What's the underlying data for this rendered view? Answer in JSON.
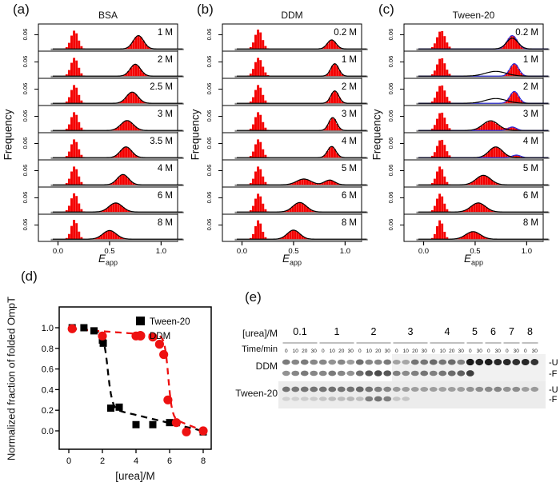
{
  "figure": {
    "background": "#ffffff",
    "panel_labels": {
      "a": "(a)",
      "b": "(b)",
      "c": "(c)",
      "d": "(d)",
      "e": "(e)"
    }
  },
  "hist_common": {
    "ylabel": "Frequency",
    "ytick_label": "0.06",
    "xtick_labels": [
      "0.0",
      "0.5",
      "1.0"
    ],
    "xtick_values": [
      0.0,
      0.5,
      1.0
    ],
    "xlabel_e": "E",
    "xlabel_sub": "app",
    "xlim": [
      -0.19,
      1.16
    ],
    "bar_color": "#f40000",
    "fit_black": "#000000",
    "fit_blue": "#2b2bd8",
    "baseline_color": "#8a8a8a"
  },
  "chart_data": [
    {
      "id": "a",
      "type": "histogram-stack",
      "title": "BSA",
      "xlabel": "E_app",
      "ylabel": "Frequency",
      "rows": [
        {
          "label": "1 M",
          "bars": [
            [
              0.16,
              0.035,
              0.85
            ],
            [
              0.78,
              0.05,
              0.62
            ]
          ],
          "black": [
            [
              0.78,
              0.05,
              0.62
            ]
          ],
          "blue": []
        },
        {
          "label": "2 M",
          "bars": [
            [
              0.16,
              0.035,
              0.85
            ],
            [
              0.75,
              0.05,
              0.55
            ]
          ],
          "black": [
            [
              0.75,
              0.05,
              0.55
            ]
          ],
          "blue": []
        },
        {
          "label": "2.5 M",
          "bars": [
            [
              0.16,
              0.035,
              0.85
            ],
            [
              0.72,
              0.055,
              0.52
            ]
          ],
          "black": [
            [
              0.72,
              0.055,
              0.52
            ]
          ],
          "blue": []
        },
        {
          "label": "3 M",
          "bars": [
            [
              0.16,
              0.035,
              0.85
            ],
            [
              0.67,
              0.06,
              0.46
            ]
          ],
          "black": [
            [
              0.67,
              0.06,
              0.46
            ]
          ],
          "blue": []
        },
        {
          "label": "3.5 M",
          "bars": [
            [
              0.16,
              0.035,
              0.85
            ],
            [
              0.66,
              0.055,
              0.5
            ]
          ],
          "black": [
            [
              0.66,
              0.055,
              0.5
            ]
          ],
          "blue": []
        },
        {
          "label": "4 M",
          "bars": [
            [
              0.16,
              0.035,
              0.85
            ],
            [
              0.63,
              0.055,
              0.48
            ]
          ],
          "black": [
            [
              0.63,
              0.055,
              0.48
            ]
          ],
          "blue": []
        },
        {
          "label": "6 M",
          "bars": [
            [
              0.16,
              0.035,
              0.87
            ],
            [
              0.56,
              0.065,
              0.42
            ]
          ],
          "black": [
            [
              0.56,
              0.065,
              0.42
            ]
          ],
          "blue": []
        },
        {
          "label": "8 M",
          "bars": [
            [
              0.16,
              0.032,
              0.9
            ],
            [
              0.5,
              0.065,
              0.4
            ]
          ],
          "black": [
            [
              0.5,
              0.065,
              0.4
            ]
          ],
          "blue": []
        }
      ]
    },
    {
      "id": "b",
      "type": "histogram-stack",
      "title": "DDM",
      "xlabel": "E_app",
      "ylabel": "Frequency",
      "rows": [
        {
          "label": "0.2 M",
          "bars": [
            [
              0.16,
              0.035,
              0.9
            ],
            [
              0.87,
              0.042,
              0.42
            ]
          ],
          "black": [
            [
              0.87,
              0.042,
              0.42
            ]
          ],
          "blue": []
        },
        {
          "label": "1 M",
          "bars": [
            [
              0.16,
              0.038,
              0.85
            ],
            [
              0.9,
              0.038,
              0.58
            ]
          ],
          "black": [
            [
              0.9,
              0.038,
              0.58
            ]
          ],
          "blue": []
        },
        {
          "label": "2 M",
          "bars": [
            [
              0.16,
              0.035,
              0.85
            ],
            [
              0.9,
              0.038,
              0.58
            ]
          ],
          "black": [
            [
              0.9,
              0.038,
              0.58
            ]
          ],
          "blue": []
        },
        {
          "label": "3 M",
          "bars": [
            [
              0.16,
              0.035,
              0.85
            ],
            [
              0.88,
              0.038,
              0.6
            ]
          ],
          "black": [
            [
              0.88,
              0.038,
              0.6
            ]
          ],
          "blue": []
        },
        {
          "label": "4 M",
          "bars": [
            [
              0.16,
              0.035,
              0.85
            ],
            [
              0.87,
              0.04,
              0.52
            ]
          ],
          "black": [
            [
              0.87,
              0.04,
              0.52
            ]
          ],
          "blue": []
        },
        {
          "label": "5 M",
          "bars": [
            [
              0.16,
              0.035,
              0.85
            ],
            [
              0.6,
              0.07,
              0.27
            ],
            [
              0.85,
              0.05,
              0.22
            ]
          ],
          "black": [
            [
              0.6,
              0.07,
              0.27
            ],
            [
              0.85,
              0.05,
              0.22
            ]
          ],
          "blue": []
        },
        {
          "label": "6 M",
          "bars": [
            [
              0.16,
              0.035,
              0.85
            ],
            [
              0.56,
              0.065,
              0.44
            ]
          ],
          "black": [
            [
              0.56,
              0.065,
              0.44
            ]
          ],
          "blue": []
        },
        {
          "label": "8 M",
          "bars": [
            [
              0.16,
              0.032,
              0.88
            ],
            [
              0.5,
              0.06,
              0.42
            ]
          ],
          "black": [
            [
              0.5,
              0.06,
              0.42
            ]
          ],
          "blue": []
        }
      ]
    },
    {
      "id": "c",
      "type": "histogram-stack",
      "title": "Tween-20",
      "xlabel": "E_app",
      "ylabel": "Frequency",
      "rows": [
        {
          "label": "0.2 M",
          "bars": [
            [
              0.17,
              0.04,
              0.85
            ],
            [
              0.86,
              0.048,
              0.62
            ]
          ],
          "black": [
            [
              0.86,
              0.055,
              0.5
            ]
          ],
          "blue": [
            [
              0.86,
              0.048,
              0.62
            ]
          ]
        },
        {
          "label": "1 M",
          "bars": [
            [
              0.17,
              0.04,
              0.85
            ],
            [
              0.88,
              0.042,
              0.58
            ]
          ],
          "black": [
            [
              0.7,
              0.1,
              0.22
            ]
          ],
          "blue": [
            [
              0.88,
              0.042,
              0.58
            ]
          ]
        },
        {
          "label": "2 M",
          "bars": [
            [
              0.17,
              0.04,
              0.85
            ],
            [
              0.88,
              0.042,
              0.55
            ]
          ],
          "black": [
            [
              0.7,
              0.1,
              0.22
            ]
          ],
          "blue": [
            [
              0.88,
              0.042,
              0.55
            ]
          ]
        },
        {
          "label": "3 M",
          "bars": [
            [
              0.17,
              0.04,
              0.85
            ],
            [
              0.65,
              0.075,
              0.42
            ],
            [
              0.86,
              0.04,
              0.15
            ]
          ],
          "black": [
            [
              0.65,
              0.075,
              0.45
            ]
          ],
          "blue": [
            [
              0.86,
              0.04,
              0.16
            ]
          ]
        },
        {
          "label": "4 M",
          "bars": [
            [
              0.17,
              0.04,
              0.85
            ],
            [
              0.7,
              0.065,
              0.5
            ],
            [
              0.9,
              0.04,
              0.1
            ]
          ],
          "black": [
            [
              0.7,
              0.065,
              0.5
            ]
          ],
          "blue": [
            [
              0.9,
              0.04,
              0.12
            ]
          ]
        },
        {
          "label": "5 M",
          "bars": [
            [
              0.16,
              0.035,
              0.85
            ],
            [
              0.58,
              0.07,
              0.44
            ]
          ],
          "black": [
            [
              0.58,
              0.07,
              0.44
            ]
          ],
          "blue": []
        },
        {
          "label": "6 M",
          "bars": [
            [
              0.16,
              0.035,
              0.85
            ],
            [
              0.53,
              0.07,
              0.42
            ]
          ],
          "black": [
            [
              0.53,
              0.07,
              0.42
            ]
          ],
          "blue": []
        },
        {
          "label": "8 M",
          "bars": [
            [
              0.16,
              0.032,
              0.88
            ],
            [
              0.48,
              0.07,
              0.35
            ]
          ],
          "black": [
            [
              0.48,
              0.07,
              0.35
            ]
          ],
          "blue": []
        }
      ]
    },
    {
      "id": "d",
      "type": "scatter",
      "xlabel": "[urea]/M",
      "ylabel": "Normalized fraction of folded OmpT",
      "xticks": [
        "0",
        "2",
        "4",
        "6",
        "8"
      ],
      "xtick_values": [
        0,
        2,
        4,
        6,
        8
      ],
      "yticks": [
        "1.0",
        "0.8",
        "0.6",
        "0.4",
        "0.2",
        "0.0"
      ],
      "ytick_values": [
        1.0,
        0.8,
        0.6,
        0.4,
        0.2,
        0.0
      ],
      "xlim": [
        -0.6,
        8.6
      ],
      "ylim": [
        -0.18,
        1.2
      ],
      "legend_position": "top-right",
      "series": [
        {
          "name": "Tween-20",
          "marker": "square",
          "color": "#000000",
          "line": "dashed",
          "points": [
            [
              0.2,
              1.0
            ],
            [
              0.9,
              1.0
            ],
            [
              1.5,
              0.97
            ],
            [
              2.0,
              0.88
            ],
            [
              2.05,
              0.85
            ],
            [
              2.5,
              0.22
            ],
            [
              3.0,
              0.23
            ],
            [
              4.0,
              0.06
            ],
            [
              5.0,
              0.06
            ],
            [
              6.0,
              0.08
            ],
            [
              8.0,
              -0.01
            ]
          ],
          "fit": {
            "pre_a": 0.995,
            "pre_b": 0.015,
            "post_a": 0.31,
            "post_b": 0.039,
            "x0": 2.32,
            "k": 0.13
          }
        },
        {
          "name": "DDM",
          "marker": "circle",
          "color": "#ee1111",
          "line": "dashed",
          "points": [
            [
              0.2,
              0.99
            ],
            [
              2.0,
              0.92
            ],
            [
              4.0,
              0.92
            ],
            [
              5.0,
              0.91
            ],
            [
              5.4,
              0.84
            ],
            [
              5.65,
              0.74
            ],
            [
              5.9,
              0.3
            ],
            [
              6.4,
              0.08
            ],
            [
              7.0,
              -0.01
            ],
            [
              8.0,
              0.0
            ]
          ],
          "fit": {
            "pre_a": 0.99,
            "pre_b": 0.012,
            "post_a": 0.52,
            "post_b": 0.065,
            "x0": 5.92,
            "k": 0.11
          }
        }
      ]
    },
    {
      "id": "e",
      "type": "gel",
      "conc_header": "[urea]/M",
      "time_header": "Time/min",
      "groups": [
        {
          "label": "0.1",
          "times": [
            "0",
            "10",
            "20",
            "30"
          ]
        },
        {
          "label": "1",
          "times": [
            "0",
            "10",
            "20",
            "30"
          ]
        },
        {
          "label": "2",
          "times": [
            "0",
            "10",
            "20",
            "30"
          ]
        },
        {
          "label": "3",
          "times": [
            "0",
            "10",
            "20",
            "30"
          ]
        },
        {
          "label": "4",
          "times": [
            "0",
            "10",
            "20",
            "30"
          ]
        },
        {
          "label": "5",
          "times": [
            "0",
            "30"
          ]
        },
        {
          "label": "6",
          "times": [
            "0",
            "30"
          ]
        },
        {
          "label": "7",
          "times": [
            "0",
            "30"
          ]
        },
        {
          "label": "8",
          "times": [
            "0",
            "30"
          ]
        }
      ],
      "rows": [
        {
          "label": "DDM",
          "bands": [
            {
              "tag": "-U",
              "intensities": [
                0.5,
                0.45,
                0.5,
                0.45,
                0.45,
                0.4,
                0.45,
                0.35,
                0.55,
                0.45,
                0.45,
                0.5,
                0.3,
                0.28,
                0.5,
                0.5,
                0.55,
                0.5,
                0.55,
                0.45,
                0.92,
                0.88,
                0.9,
                0.85,
                0.85,
                0.82,
                0.85,
                0.8
              ]
            },
            {
              "tag": "-F",
              "intensities": [
                0.4,
                0.45,
                0.5,
                0.45,
                0.45,
                0.5,
                0.45,
                0.4,
                0.55,
                0.65,
                0.7,
                0.65,
                0.45,
                0.4,
                0.45,
                0.5,
                0.45,
                0.5,
                0.55,
                0.6,
                0.75,
                0,
                0,
                0,
                0,
                0,
                0,
                0
              ]
            }
          ]
        },
        {
          "label": "Tween-20",
          "bands": [
            {
              "tag": "-U",
              "intensities": [
                0.5,
                0.48,
                0.5,
                0.5,
                0.5,
                0.52,
                0.5,
                0.5,
                0.55,
                0.5,
                0.45,
                0.42,
                0.32,
                0.3,
                0.3,
                0.3,
                0.3,
                0.28,
                0.3,
                0.3,
                0.35,
                0.38,
                0.4,
                0.42,
                0.35,
                0.38,
                0.3,
                0.32
              ]
            },
            {
              "tag": "-F",
              "intensities": [
                0.06,
                0.06,
                0.08,
                0.08,
                0.12,
                0.15,
                0.15,
                0.18,
                0.15,
                0.45,
                0.5,
                0.45,
                0.12,
                0.12,
                0,
                0,
                0,
                0,
                0,
                0,
                0,
                0,
                0,
                0,
                0,
                0,
                0,
                0
              ]
            }
          ]
        }
      ]
    }
  ]
}
